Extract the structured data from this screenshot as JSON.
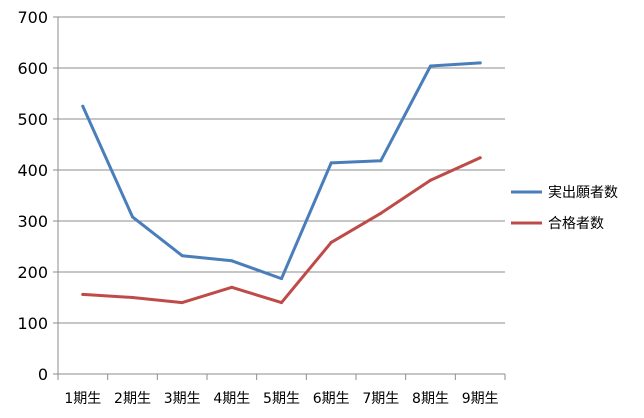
{
  "chart_data": {
    "type": "line",
    "title": "",
    "xlabel": "",
    "ylabel": "",
    "categories": [
      "1期生",
      "2期生",
      "3期生",
      "4期生",
      "5期生",
      "6期生",
      "7期生",
      "8期生",
      "9期生"
    ],
    "ylim": [
      0,
      700
    ],
    "yticks": [
      0,
      100,
      200,
      300,
      400,
      500,
      600,
      700
    ],
    "grid": "horizontal",
    "legend_position": "right",
    "series": [
      {
        "name": "実出願者数",
        "color": "#4a7ebb",
        "values": [
          525,
          308,
          232,
          222,
          187,
          414,
          418,
          604,
          610
        ]
      },
      {
        "name": "合格者数",
        "color": "#be4b48",
        "values": [
          156,
          150,
          140,
          170,
          140,
          258,
          315,
          380,
          424
        ]
      }
    ]
  }
}
